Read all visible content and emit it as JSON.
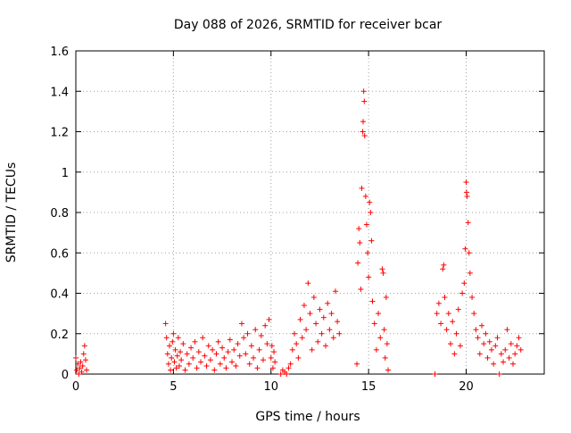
{
  "chart_data": {
    "type": "scatter",
    "title": "Day 088 of 2026, SRMTID for receiver bcar",
    "xlabel": "GPS time / hours",
    "ylabel": "SRMTID / TECUs",
    "xlim": [
      0,
      24
    ],
    "ylim": [
      0,
      1.6
    ],
    "grid": true,
    "marker": "+",
    "series_color": "#ff0000",
    "x_ticks": [
      0,
      5,
      10,
      15,
      20
    ],
    "y_ticks": [
      0,
      0.2,
      0.4,
      0.6,
      0.8,
      1,
      1.2,
      1.4,
      1.6
    ],
    "x_tick_labels": [
      "0",
      "5",
      "10",
      "15",
      "20"
    ],
    "y_tick_labels": [
      "0",
      "0.2",
      "0.4",
      "0.6",
      "0.8",
      "1",
      "1.2",
      "1.4",
      "1.6"
    ],
    "series": [
      {
        "name": "SRMTID",
        "points": [
          [
            0.0,
            0.08
          ],
          [
            0.05,
            0.02
          ],
          [
            0.1,
            0.05
          ],
          [
            0.15,
            0.0
          ],
          [
            0.2,
            0.03
          ],
          [
            0.25,
            0.06
          ],
          [
            0.3,
            0.01
          ],
          [
            0.35,
            0.04
          ],
          [
            0.4,
            0.1
          ],
          [
            0.45,
            0.14
          ],
          [
            0.5,
            0.07
          ],
          [
            0.55,
            0.02
          ],
          [
            4.6,
            0.25
          ],
          [
            4.65,
            0.18
          ],
          [
            4.7,
            0.1
          ],
          [
            4.75,
            0.05
          ],
          [
            4.8,
            0.14
          ],
          [
            4.85,
            0.02
          ],
          [
            4.9,
            0.08
          ],
          [
            4.95,
            0.16
          ],
          [
            5.0,
            0.2
          ],
          [
            5.05,
            0.06
          ],
          [
            5.1,
            0.12
          ],
          [
            5.15,
            0.03
          ],
          [
            5.2,
            0.09
          ],
          [
            5.25,
            0.18
          ],
          [
            5.3,
            0.04
          ],
          [
            5.35,
            0.11
          ],
          [
            5.4,
            0.07
          ],
          [
            5.5,
            0.15
          ],
          [
            5.6,
            0.02
          ],
          [
            5.7,
            0.1
          ],
          [
            5.8,
            0.05
          ],
          [
            5.9,
            0.13
          ],
          [
            6.0,
            0.08
          ],
          [
            6.1,
            0.16
          ],
          [
            6.2,
            0.03
          ],
          [
            6.3,
            0.11
          ],
          [
            6.4,
            0.06
          ],
          [
            6.5,
            0.18
          ],
          [
            6.6,
            0.09
          ],
          [
            6.7,
            0.04
          ],
          [
            6.8,
            0.14
          ],
          [
            6.9,
            0.07
          ],
          [
            7.0,
            0.12
          ],
          [
            7.1,
            0.02
          ],
          [
            7.2,
            0.1
          ],
          [
            7.3,
            0.16
          ],
          [
            7.4,
            0.05
          ],
          [
            7.5,
            0.13
          ],
          [
            7.6,
            0.08
          ],
          [
            7.7,
            0.03
          ],
          [
            7.8,
            0.11
          ],
          [
            7.9,
            0.17
          ],
          [
            8.0,
            0.06
          ],
          [
            8.1,
            0.12
          ],
          [
            8.2,
            0.04
          ],
          [
            8.3,
            0.15
          ],
          [
            8.4,
            0.09
          ],
          [
            8.5,
            0.25
          ],
          [
            8.6,
            0.18
          ],
          [
            8.7,
            0.1
          ],
          [
            8.8,
            0.2
          ],
          [
            8.9,
            0.05
          ],
          [
            9.0,
            0.14
          ],
          [
            9.1,
            0.08
          ],
          [
            9.2,
            0.22
          ],
          [
            9.3,
            0.03
          ],
          [
            9.4,
            0.12
          ],
          [
            9.5,
            0.19
          ],
          [
            9.6,
            0.07
          ],
          [
            9.7,
            0.24
          ],
          [
            9.8,
            0.15
          ],
          [
            9.9,
            0.27
          ],
          [
            10.0,
            0.08
          ],
          [
            10.05,
            0.14
          ],
          [
            10.1,
            0.03
          ],
          [
            10.15,
            0.11
          ],
          [
            10.2,
            0.06
          ],
          [
            10.5,
            0.0
          ],
          [
            10.6,
            0.02
          ],
          [
            10.7,
            0.01
          ],
          [
            10.8,
            0.0
          ],
          [
            10.9,
            0.03
          ],
          [
            11.0,
            0.05
          ],
          [
            11.1,
            0.12
          ],
          [
            11.2,
            0.2
          ],
          [
            11.3,
            0.15
          ],
          [
            11.4,
            0.08
          ],
          [
            11.5,
            0.27
          ],
          [
            11.6,
            0.18
          ],
          [
            11.7,
            0.34
          ],
          [
            11.8,
            0.22
          ],
          [
            11.9,
            0.45
          ],
          [
            12.0,
            0.3
          ],
          [
            12.1,
            0.12
          ],
          [
            12.2,
            0.38
          ],
          [
            12.3,
            0.25
          ],
          [
            12.4,
            0.16
          ],
          [
            12.5,
            0.32
          ],
          [
            12.6,
            0.2
          ],
          [
            12.7,
            0.28
          ],
          [
            12.8,
            0.14
          ],
          [
            12.9,
            0.35
          ],
          [
            13.0,
            0.22
          ],
          [
            13.1,
            0.3
          ],
          [
            13.2,
            0.18
          ],
          [
            13.3,
            0.41
          ],
          [
            13.4,
            0.26
          ],
          [
            13.5,
            0.2
          ],
          [
            14.4,
            0.05
          ],
          [
            14.45,
            0.55
          ],
          [
            14.5,
            0.72
          ],
          [
            14.55,
            0.65
          ],
          [
            14.6,
            0.42
          ],
          [
            14.65,
            0.92
          ],
          [
            14.7,
            1.2
          ],
          [
            14.72,
            1.25
          ],
          [
            14.75,
            1.4
          ],
          [
            14.78,
            1.35
          ],
          [
            14.8,
            1.18
          ],
          [
            14.85,
            0.88
          ],
          [
            14.9,
            0.74
          ],
          [
            14.95,
            0.6
          ],
          [
            15.0,
            0.48
          ],
          [
            15.05,
            0.85
          ],
          [
            15.1,
            0.8
          ],
          [
            15.15,
            0.66
          ],
          [
            15.2,
            0.36
          ],
          [
            15.3,
            0.25
          ],
          [
            15.4,
            0.12
          ],
          [
            15.5,
            0.3
          ],
          [
            15.6,
            0.18
          ],
          [
            15.7,
            0.52
          ],
          [
            15.75,
            0.5
          ],
          [
            15.8,
            0.22
          ],
          [
            15.85,
            0.08
          ],
          [
            15.9,
            0.38
          ],
          [
            15.95,
            0.15
          ],
          [
            16.0,
            0.02
          ],
          [
            18.4,
            0.0
          ],
          [
            18.5,
            0.3
          ],
          [
            18.6,
            0.35
          ],
          [
            18.7,
            0.25
          ],
          [
            18.8,
            0.52
          ],
          [
            18.85,
            0.54
          ],
          [
            18.9,
            0.38
          ],
          [
            19.0,
            0.22
          ],
          [
            19.1,
            0.3
          ],
          [
            19.2,
            0.15
          ],
          [
            19.3,
            0.26
          ],
          [
            19.4,
            0.1
          ],
          [
            19.5,
            0.2
          ],
          [
            19.6,
            0.32
          ],
          [
            19.7,
            0.14
          ],
          [
            19.8,
            0.4
          ],
          [
            19.9,
            0.45
          ],
          [
            19.95,
            0.62
          ],
          [
            20.0,
            0.95
          ],
          [
            20.02,
            0.9
          ],
          [
            20.05,
            0.88
          ],
          [
            20.1,
            0.75
          ],
          [
            20.15,
            0.6
          ],
          [
            20.2,
            0.5
          ],
          [
            20.3,
            0.38
          ],
          [
            20.4,
            0.3
          ],
          [
            20.5,
            0.22
          ],
          [
            20.6,
            0.18
          ],
          [
            20.7,
            0.1
          ],
          [
            20.8,
            0.24
          ],
          [
            20.9,
            0.15
          ],
          [
            21.0,
            0.2
          ],
          [
            21.1,
            0.08
          ],
          [
            21.2,
            0.16
          ],
          [
            21.3,
            0.12
          ],
          [
            21.4,
            0.05
          ],
          [
            21.5,
            0.14
          ],
          [
            21.6,
            0.18
          ],
          [
            21.7,
            0.0
          ],
          [
            21.8,
            0.1
          ],
          [
            21.9,
            0.06
          ],
          [
            22.0,
            0.12
          ],
          [
            22.1,
            0.22
          ],
          [
            22.2,
            0.08
          ],
          [
            22.3,
            0.15
          ],
          [
            22.4,
            0.05
          ],
          [
            22.5,
            0.1
          ],
          [
            22.6,
            0.14
          ],
          [
            22.7,
            0.18
          ],
          [
            22.8,
            0.12
          ]
        ]
      }
    ]
  }
}
